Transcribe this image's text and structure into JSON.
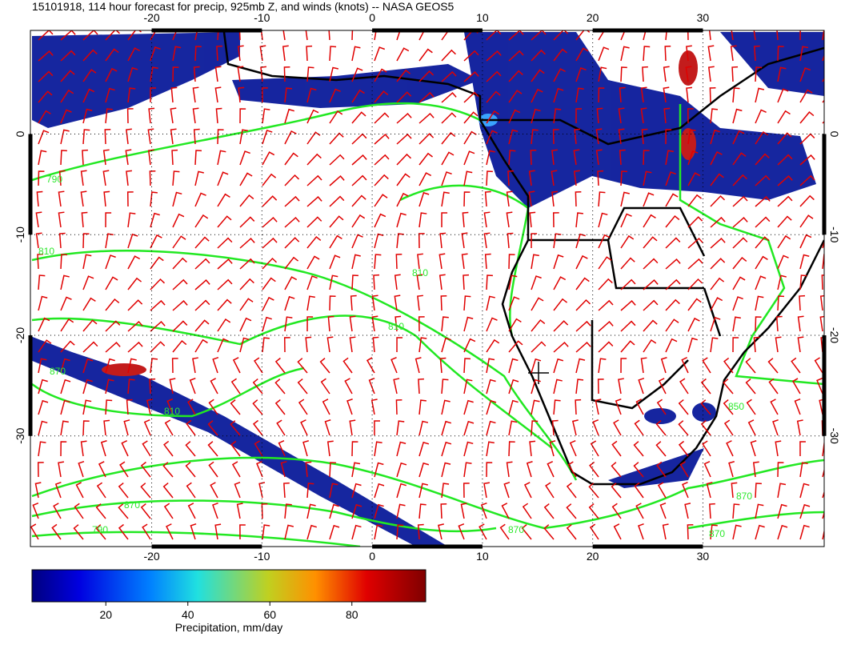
{
  "title": "15101918, 114 hour forecast for precip, 925mb Z, and winds (knots) -- NASA GEOS5",
  "map": {
    "lon_range": [
      -31,
      41
    ],
    "lat_range": [
      10.3,
      -41
    ],
    "lon_ticks": [
      -20,
      -10,
      0,
      10,
      20,
      30
    ],
    "lat_ticks": [
      0,
      -10,
      -20,
      -30
    ]
  },
  "contour_labels": [
    "790",
    "810",
    "870",
    "810",
    "810",
    "870",
    "870",
    "790",
    "870",
    "870",
    "810",
    "850"
  ],
  "colorbar": {
    "label": "Precipitation, mm/day",
    "range": [
      2,
      98
    ],
    "ticks": [
      20,
      40,
      60,
      80
    ]
  }
}
